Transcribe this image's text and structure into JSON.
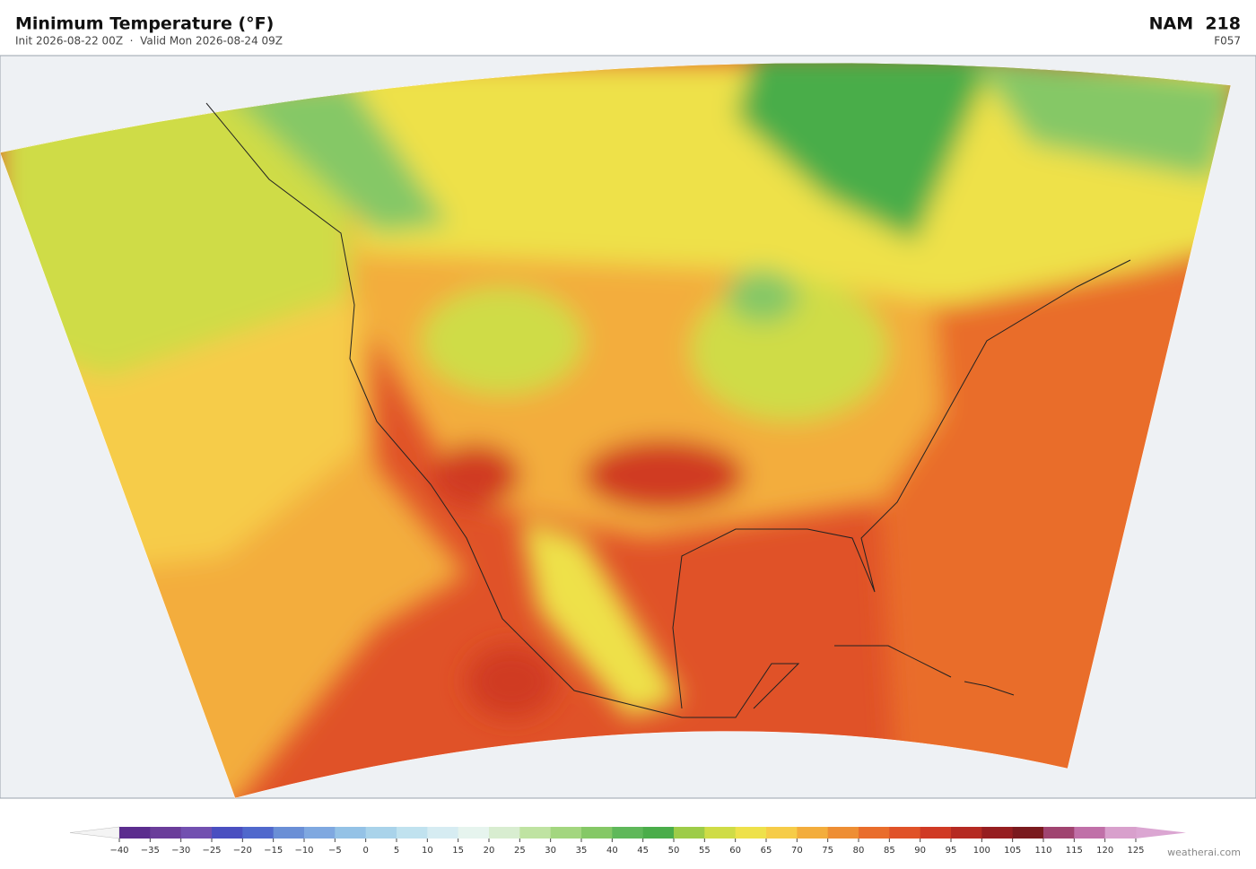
{
  "header": {
    "title": "Minimum Temperature  (°F)",
    "subtitle": "Init 2026-08-22 00Z  ·  Valid Mon 2026-08-24 09Z",
    "model": "NAM  218",
    "frame": "F057"
  },
  "colorbar": {
    "ticks": [
      {
        "value": -40,
        "label": "−40"
      },
      {
        "value": -35,
        "label": "−35"
      },
      {
        "value": -30,
        "label": "−30"
      },
      {
        "value": -25,
        "label": "−25"
      },
      {
        "value": -20,
        "label": "−20"
      },
      {
        "value": -15,
        "label": "−15"
      },
      {
        "value": -10,
        "label": "−10"
      },
      {
        "value": -5,
        "label": "−5"
      },
      0,
      5,
      10,
      15,
      20,
      25,
      30,
      35,
      40,
      45,
      50,
      55,
      60,
      65,
      70,
      75,
      80,
      85,
      90,
      95,
      100,
      105,
      110,
      115,
      120,
      125
    ],
    "colors": [
      "#5b2d8e",
      "#6a3d9a",
      "#7250b0",
      "#4a4fc0",
      "#5068cc",
      "#6a8fd6",
      "#7fa8e0",
      "#94c2e6",
      "#a9d3ea",
      "#c0e2ef",
      "#d6ecf2",
      "#e6f4ee",
      "#d8edd0",
      "#bfe3a2",
      "#a3d67f",
      "#85c866",
      "#5fb85a",
      "#4aad4a",
      "#9dcc48",
      "#cfdc46",
      "#eee14a",
      "#f6cc48",
      "#f3ad3c",
      "#ee8e34",
      "#e96d2c",
      "#e05228",
      "#d03a24",
      "#b52a22",
      "#961e20",
      "#7a1a1e",
      "#a04470",
      "#c070a8",
      "#d8a0cc"
    ],
    "under_color": "#f4f4f4",
    "over_color": "#dba6d2"
  },
  "footer": {
    "credit": "weatherai.com"
  }
}
